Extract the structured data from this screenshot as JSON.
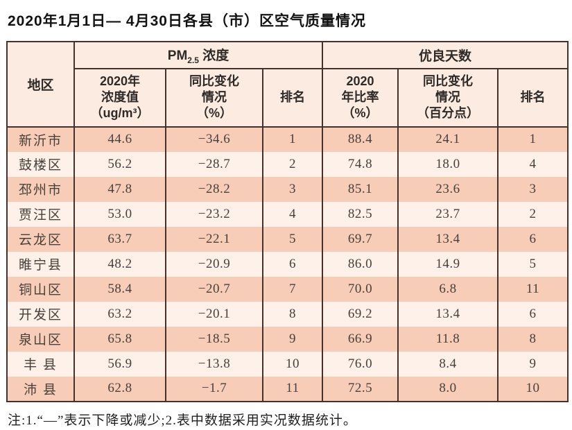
{
  "page": {
    "title": "2020年1月1日— 4月30日各县（市）区空气质量情况",
    "footnote": "注:1.“—”表示下降或减少;2.表中数据采用实况数据统计。"
  },
  "colors": {
    "border": "#45302a",
    "row_highlight": "#f8cdb8",
    "row_light": "#fdf1ea",
    "header_bg": "#fcebe0"
  },
  "table": {
    "region_header": "地区",
    "pm_group": {
      "prefix": "PM",
      "sub": "2.5",
      "label": "浓度"
    },
    "good_days_group": "优良天数",
    "sub_headers": {
      "pm_value": "2020年\n浓度值\n（ug/m³）",
      "pm_change": "同比变化\n情况\n（%）",
      "pm_rank": "排名",
      "gd_ratio": "2020\n年比率\n（%）",
      "gd_change": "同比变化\n情况\n（百分点）",
      "gd_rank": "排名"
    },
    "rows": [
      {
        "region": "新沂市",
        "pm_value": "44.6",
        "pm_change": "−34.6",
        "pm_rank": "1",
        "gd_ratio": "88.4",
        "gd_change": "24.1",
        "gd_rank": "1"
      },
      {
        "region": "鼓楼区",
        "pm_value": "56.2",
        "pm_change": "−28.7",
        "pm_rank": "2",
        "gd_ratio": "74.8",
        "gd_change": "18.0",
        "gd_rank": "4"
      },
      {
        "region": "邳州市",
        "pm_value": "47.8",
        "pm_change": "−28.2",
        "pm_rank": "3",
        "gd_ratio": "85.1",
        "gd_change": "23.6",
        "gd_rank": "3"
      },
      {
        "region": "贾汪区",
        "pm_value": "53.0",
        "pm_change": "−23.2",
        "pm_rank": "4",
        "gd_ratio": "82.5",
        "gd_change": "23.7",
        "gd_rank": "2"
      },
      {
        "region": "云龙区",
        "pm_value": "63.7",
        "pm_change": "−22.1",
        "pm_rank": "5",
        "gd_ratio": "69.7",
        "gd_change": "13.4",
        "gd_rank": "6"
      },
      {
        "region": "睢宁县",
        "pm_value": "48.2",
        "pm_change": "−20.9",
        "pm_rank": "6",
        "gd_ratio": "86.0",
        "gd_change": "14.9",
        "gd_rank": "5"
      },
      {
        "region": "铜山区",
        "pm_value": "58.4",
        "pm_change": "−20.7",
        "pm_rank": "7",
        "gd_ratio": "70.0",
        "gd_change": "6.8",
        "gd_rank": "11"
      },
      {
        "region": "开发区",
        "pm_value": "63.2",
        "pm_change": "−20.1",
        "pm_rank": "8",
        "gd_ratio": "69.2",
        "gd_change": "13.4",
        "gd_rank": "6"
      },
      {
        "region": "泉山区",
        "pm_value": "65.8",
        "pm_change": "−18.5",
        "pm_rank": "9",
        "gd_ratio": "66.9",
        "gd_change": "11.8",
        "gd_rank": "8"
      },
      {
        "region": "丰 县",
        "pm_value": "56.9",
        "pm_change": "−13.8",
        "pm_rank": "10",
        "gd_ratio": "76.0",
        "gd_change": "8.4",
        "gd_rank": "9"
      },
      {
        "region": "沛 县",
        "pm_value": "62.8",
        "pm_change": "−1.7",
        "pm_rank": "11",
        "gd_ratio": "72.5",
        "gd_change": "8.0",
        "gd_rank": "10"
      }
    ]
  }
}
